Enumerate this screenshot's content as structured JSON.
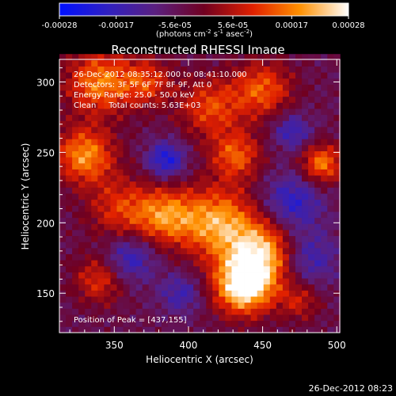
{
  "chart_data": {
    "type": "heatmap",
    "title": "Reconstructed RHESSI Image",
    "xlabel": "Heliocentric X (arcsec)",
    "ylabel": "Heliocentric Y (arcsec)",
    "xlim": [
      313,
      502
    ],
    "ylim": [
      122,
      316
    ],
    "x_ticks": [
      350,
      400,
      450,
      500
    ],
    "y_ticks": [
      150,
      200,
      250,
      300
    ],
    "colorbar": {
      "ticks": [
        "-0.00028",
        "-0.00017",
        "-5.6e-05",
        "5.6e-05",
        "0.00017",
        "0.00028"
      ],
      "range": [
        -0.00028,
        0.00028
      ],
      "units_base": "(photons cm",
      "units_exp1": "-2",
      "units_mid": " s",
      "units_exp2": "-1",
      "units_mid2": " asec",
      "units_exp3": "-2",
      "units_end": ")"
    },
    "annotations": [
      "26-Dec-2012 08:35:12.000 to 08:41:10.000",
      "Detectors: 3F 5F 6F 7F 8F 9F, Att 0",
      "Energy Range: 25.0 - 50.0 keV",
      "Clean     Total counts: 5.63E+03"
    ],
    "peak_label": "Position of Peak = [437,155]",
    "peak": [
      437,
      155
    ],
    "blobs": [
      {
        "x": 437,
        "y": 155,
        "s": 14,
        "a": 1.0
      },
      {
        "x": 450,
        "y": 178,
        "s": 16,
        "a": 0.8
      },
      {
        "x": 420,
        "y": 200,
        "s": 18,
        "a": 0.75
      },
      {
        "x": 385,
        "y": 205,
        "s": 14,
        "a": 0.6
      },
      {
        "x": 355,
        "y": 210,
        "s": 16,
        "a": 0.45
      },
      {
        "x": 330,
        "y": 248,
        "s": 14,
        "a": 0.7
      },
      {
        "x": 340,
        "y": 300,
        "s": 16,
        "a": 0.65
      },
      {
        "x": 372,
        "y": 300,
        "s": 12,
        "a": 0.45
      },
      {
        "x": 415,
        "y": 282,
        "s": 15,
        "a": 0.5
      },
      {
        "x": 450,
        "y": 295,
        "s": 14,
        "a": 0.55
      },
      {
        "x": 432,
        "y": 248,
        "s": 12,
        "a": 0.55
      },
      {
        "x": 490,
        "y": 242,
        "s": 10,
        "a": 0.65
      },
      {
        "x": 340,
        "y": 160,
        "s": 12,
        "a": 0.45
      },
      {
        "x": 475,
        "y": 145,
        "s": 10,
        "a": 0.35
      },
      {
        "x": 385,
        "y": 245,
        "s": 9,
        "a": -0.55
      },
      {
        "x": 470,
        "y": 215,
        "s": 14,
        "a": -0.45
      },
      {
        "x": 480,
        "y": 175,
        "s": 14,
        "a": -0.4
      },
      {
        "x": 360,
        "y": 175,
        "s": 12,
        "a": -0.45
      },
      {
        "x": 395,
        "y": 150,
        "s": 10,
        "a": -0.35
      },
      {
        "x": 470,
        "y": 265,
        "s": 9,
        "a": -0.4
      }
    ]
  },
  "footer": {
    "timestamp": "26-Dec-2012 08:23"
  }
}
